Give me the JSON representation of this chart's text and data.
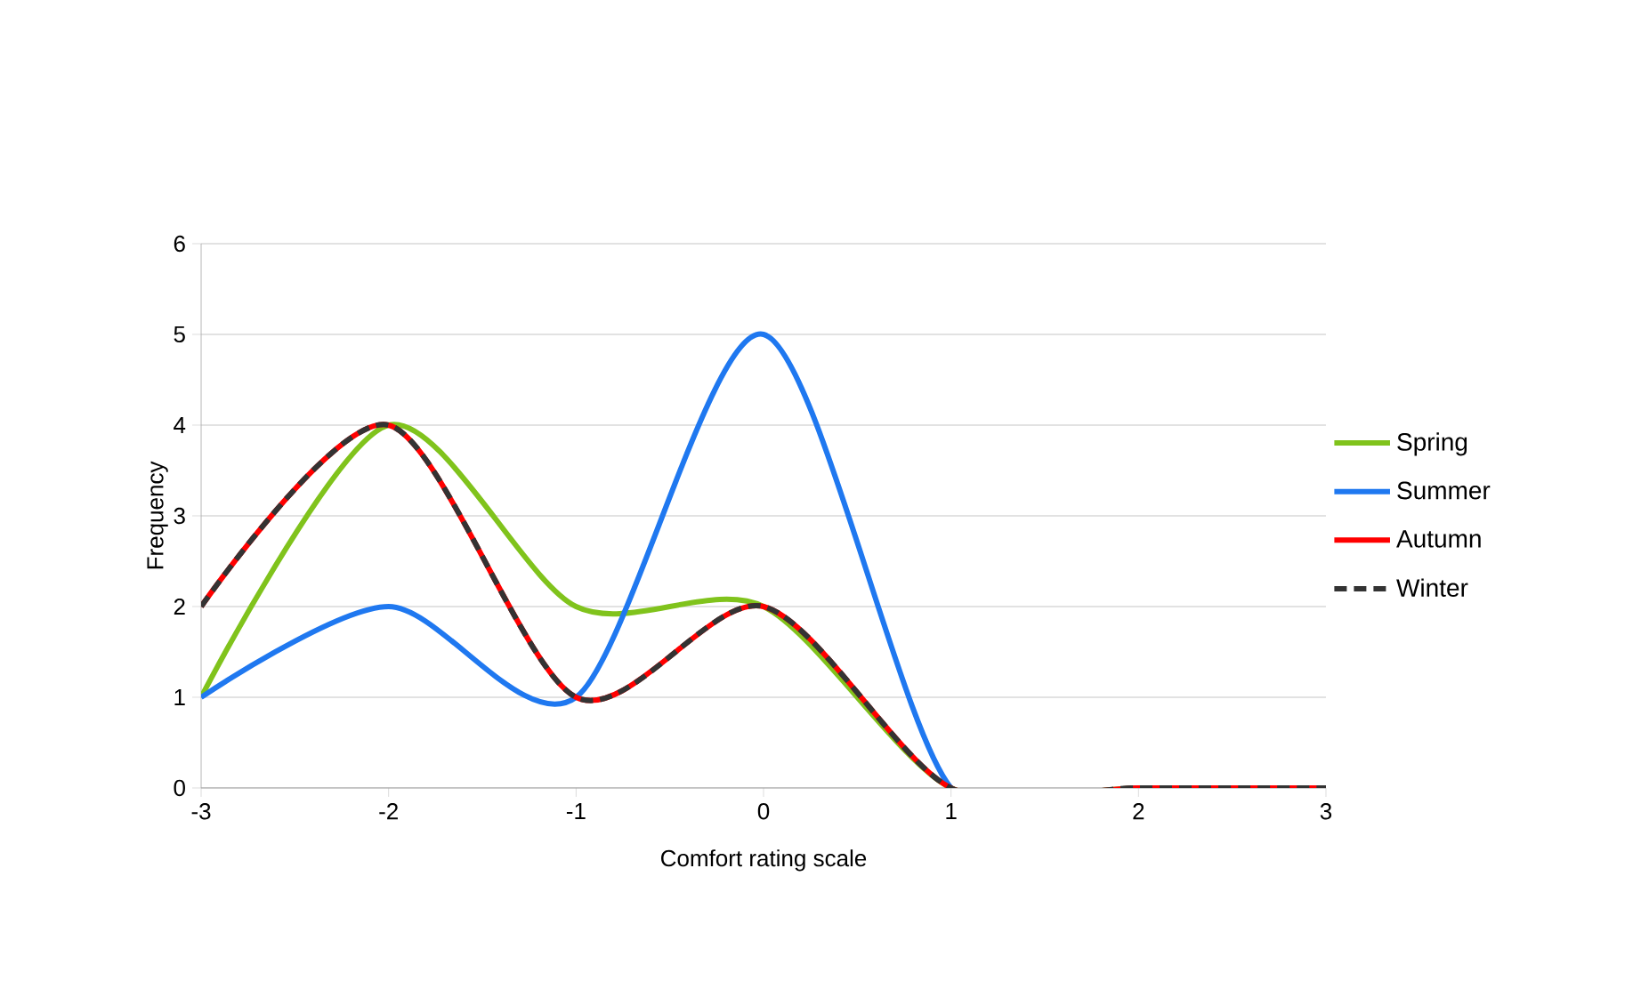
{
  "chart_data": {
    "type": "line",
    "xlabel": "Comfort rating scale",
    "ylabel": "Frequency",
    "x": [
      -3,
      -2,
      -1,
      0,
      1,
      2,
      3
    ],
    "xlim": [
      -3,
      3
    ],
    "ylim": [
      0,
      6
    ],
    "xticks": [
      -3,
      -2,
      -1,
      0,
      1,
      2,
      3
    ],
    "yticks": [
      0,
      1,
      2,
      3,
      4,
      5,
      6
    ],
    "grid": "y",
    "legend": "right",
    "marker": "none",
    "series": [
      {
        "name": "Spring",
        "color": "#80c31c",
        "values": [
          1,
          4,
          2,
          2,
          0,
          0,
          0
        ]
      },
      {
        "name": "Summer",
        "color": "#1f78f0",
        "values": [
          1,
          2,
          1,
          5,
          0,
          0,
          0
        ]
      },
      {
        "name": "Autumn",
        "color": "#ff0000",
        "values": [
          2,
          4,
          1,
          2,
          0,
          0,
          0
        ]
      },
      {
        "name": "Winter",
        "color": "#333333",
        "values": [
          2,
          4,
          1,
          2,
          0,
          0,
          0
        ],
        "line_style": "dashed"
      }
    ]
  }
}
